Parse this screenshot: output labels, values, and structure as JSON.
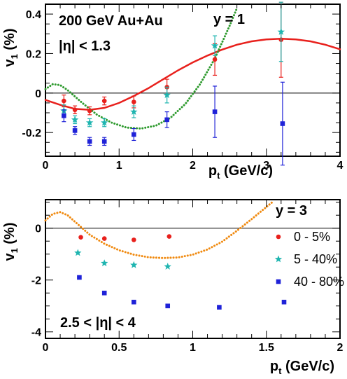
{
  "chart_data": [
    {
      "type": "scatter",
      "annotations": [
        "200 GeV Au+Au",
        "|η| < 1.3",
        "y = 1"
      ],
      "xlabel_main": "p",
      "xlabel_sub": "t",
      "xlabel_unit": " (GeV/c)",
      "ylabel_main": "v",
      "ylabel_sub": "1",
      "ylabel_unit": " (%)",
      "xlim": [
        0,
        4
      ],
      "ylim": [
        -0.32,
        0.45
      ],
      "xticks": [
        0,
        1,
        2,
        3,
        4
      ],
      "xtick_labels": [
        "0",
        "1",
        "2",
        "3",
        "4"
      ],
      "yticks": [
        -0.2,
        0,
        0.2,
        0.4
      ],
      "ytick_labels": [
        "-0.2",
        "0",
        "0.2",
        "0.4"
      ],
      "legend": "none",
      "series": [
        {
          "marker": "circle",
          "color": "#e8201c",
          "x": [
            0.25,
            0.4,
            0.6,
            0.8,
            1.2,
            1.65,
            2.3,
            3.2
          ],
          "y": [
            -0.04,
            -0.085,
            -0.09,
            -0.04,
            -0.045,
            0.03,
            0.17,
            0.27
          ],
          "err": [
            0.03,
            0.02,
            0.02,
            0.02,
            0.03,
            0.04,
            0.08,
            0.19
          ]
        },
        {
          "marker": "star",
          "color": "#1fb5b0",
          "x": [
            0.25,
            0.4,
            0.6,
            0.8,
            1.2,
            1.65,
            2.3,
            3.2
          ],
          "y": [
            -0.09,
            -0.135,
            -0.15,
            -0.15,
            -0.095,
            -0.01,
            0.24,
            0.31
          ],
          "err": [
            0.03,
            0.02,
            0.02,
            0.02,
            0.03,
            0.04,
            0.05,
            0.15
          ]
        },
        {
          "marker": "square",
          "color": "#1f22d8",
          "x": [
            0.25,
            0.4,
            0.6,
            0.8,
            1.2,
            1.65,
            2.3,
            3.22
          ],
          "y": [
            -0.115,
            -0.19,
            -0.245,
            -0.245,
            -0.21,
            -0.135,
            -0.095,
            -0.155
          ],
          "err": [
            0.03,
            0.02,
            0.02,
            0.02,
            0.03,
            0.04,
            0.13,
            0.21
          ]
        }
      ],
      "curves": [
        {
          "style": "solid",
          "color": "#e8201c",
          "x": [
            0.0,
            0.2,
            0.4,
            0.6,
            0.8,
            1.0,
            1.2,
            1.4,
            1.6,
            1.8,
            2.0,
            2.2,
            2.4,
            2.6,
            2.8,
            3.0,
            3.2,
            3.4,
            3.6,
            3.8,
            4.0
          ],
          "y": [
            -0.035,
            -0.06,
            -0.08,
            -0.085,
            -0.075,
            -0.05,
            -0.015,
            0.025,
            0.07,
            0.115,
            0.155,
            0.19,
            0.22,
            0.245,
            0.262,
            0.272,
            0.275,
            0.272,
            0.262,
            0.245,
            0.222
          ]
        },
        {
          "style": "dotted",
          "color": "#2e9a2e",
          "x": [
            0.0,
            0.1,
            0.2,
            0.3,
            0.5,
            0.7,
            0.9,
            1.1,
            1.3,
            1.5,
            1.7,
            1.9,
            2.1,
            2.3,
            2.5,
            2.6
          ],
          "y": [
            0.02,
            0.045,
            0.04,
            0.015,
            -0.05,
            -0.11,
            -0.15,
            -0.175,
            -0.18,
            -0.165,
            -0.125,
            -0.055,
            0.045,
            0.175,
            0.34,
            0.43
          ]
        }
      ]
    },
    {
      "type": "scatter",
      "annotations": [
        "2.5 < |η| < 4"
      ],
      "legend_title": "y = 3",
      "xlabel_main": "p",
      "xlabel_sub": "t",
      "xlabel_unit": " (GeV/c)",
      "ylabel_main": "v",
      "ylabel_sub": "1",
      "ylabel_unit": " (%)",
      "xlim": [
        0,
        2
      ],
      "ylim": [
        -4.25,
        1.1
      ],
      "xticks": [
        0,
        0.5,
        1,
        1.5,
        2
      ],
      "xtick_labels": [
        "0",
        "0.5",
        "1",
        "1.5",
        "2"
      ],
      "yticks": [
        -4,
        -2,
        0
      ],
      "ytick_labels": [
        "-4",
        "-2",
        "0"
      ],
      "legend": "right",
      "series": [
        {
          "name": "0 - 5%",
          "marker": "circle",
          "color": "#e8201c",
          "x": [
            0.24,
            0.4,
            0.6,
            0.84
          ],
          "y": [
            -0.35,
            -0.4,
            -0.45,
            -0.32
          ]
        },
        {
          "name": "5 - 40%",
          "marker": "star",
          "color": "#1fb5b0",
          "x": [
            0.22,
            0.4,
            0.6,
            0.83
          ],
          "y": [
            -0.95,
            -1.35,
            -1.42,
            -1.48
          ]
        },
        {
          "name": "40 - 80%",
          "marker": "square",
          "color": "#1f22d8",
          "x": [
            0.23,
            0.4,
            0.6,
            0.83,
            1.18,
            1.62
          ],
          "y": [
            -1.9,
            -2.5,
            -2.85,
            -3.0,
            -3.05,
            -2.85
          ]
        }
      ],
      "curves": [
        {
          "style": "dotted",
          "color": "#f08a10",
          "x": [
            0.0,
            0.05,
            0.1,
            0.15,
            0.2,
            0.3,
            0.4,
            0.5,
            0.6,
            0.7,
            0.8,
            0.9,
            1.0,
            1.1,
            1.2,
            1.3,
            1.4,
            1.5,
            1.55
          ],
          "y": [
            0.3,
            0.55,
            0.62,
            0.5,
            0.25,
            -0.25,
            -0.6,
            -0.85,
            -1.02,
            -1.12,
            -1.15,
            -1.13,
            -1.02,
            -0.82,
            -0.52,
            -0.1,
            0.35,
            0.82,
            1.05
          ]
        }
      ]
    }
  ]
}
